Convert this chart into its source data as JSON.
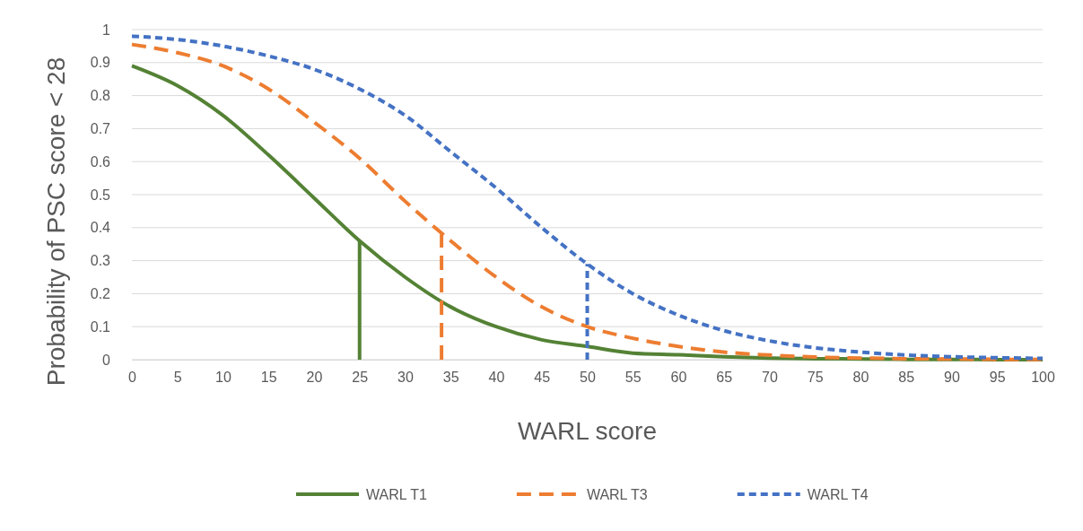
{
  "chart_data": {
    "type": "line",
    "xlabel": "WARL score",
    "ylabel": "Probability of PSC score < 28",
    "x": [
      0,
      5,
      10,
      15,
      20,
      25,
      30,
      35,
      40,
      45,
      50,
      55,
      60,
      65,
      70,
      75,
      80,
      85,
      90,
      95,
      100
    ],
    "xlim": [
      0,
      100
    ],
    "xticks": [
      0,
      5,
      10,
      15,
      20,
      25,
      30,
      35,
      40,
      45,
      50,
      55,
      60,
      65,
      70,
      75,
      80,
      85,
      90,
      95,
      100
    ],
    "ylim": [
      0,
      1
    ],
    "yticks": [
      0,
      0.1,
      0.2,
      0.3,
      0.4,
      0.5,
      0.6,
      0.7,
      0.8,
      0.9,
      1
    ],
    "grid": "y",
    "legend": "bottom",
    "marker": "none",
    "series": [
      {
        "name": "WARL T1",
        "color": "#548235",
        "line_style": "solid",
        "values": [
          0.89,
          0.83,
          0.74,
          0.62,
          0.49,
          0.36,
          0.25,
          0.16,
          0.1,
          0.06,
          0.04,
          0.02,
          0.015,
          0.009,
          0.005,
          0.003,
          0.002,
          0.001,
          0.001,
          0,
          0
        ]
      },
      {
        "name": "WARL T3",
        "color": "#ed7d31",
        "line_style": "dashed",
        "values": [
          0.955,
          0.93,
          0.89,
          0.82,
          0.72,
          0.61,
          0.48,
          0.36,
          0.25,
          0.16,
          0.1,
          0.065,
          0.04,
          0.023,
          0.014,
          0.008,
          0.005,
          0.003,
          0.002,
          0.001,
          0.001
        ]
      },
      {
        "name": "WARL T4",
        "color": "#4472c4",
        "line_style": "dotted",
        "values": [
          0.98,
          0.97,
          0.95,
          0.92,
          0.88,
          0.82,
          0.74,
          0.63,
          0.52,
          0.4,
          0.29,
          0.2,
          0.135,
          0.088,
          0.057,
          0.036,
          0.023,
          0.014,
          0.009,
          0.006,
          0.004
        ]
      },
      {
        "color": "#548235",
        "line_style": "solid",
        "x": [
          25,
          25
        ],
        "values": [
          0,
          0.36
        ]
      },
      {
        "color": "#ed7d31",
        "line_style": "dashed",
        "x": [
          34,
          34
        ],
        "values": [
          0,
          0.38
        ]
      },
      {
        "color": "#4472c4",
        "line_style": "dotted",
        "x": [
          50,
          50
        ],
        "values": [
          0,
          0.29
        ]
      }
    ]
  }
}
